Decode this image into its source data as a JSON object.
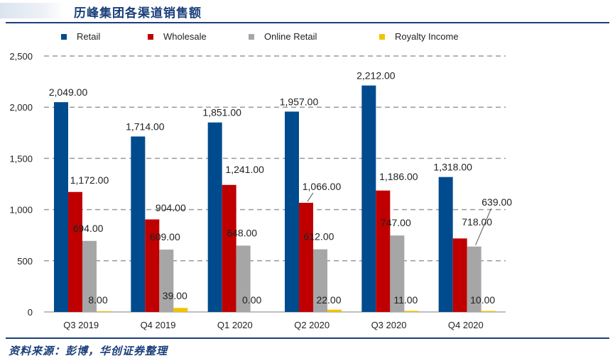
{
  "header": {
    "title": "历峰集团各渠道销售额"
  },
  "footer": {
    "source": "资料来源：彭博，华创证券整理"
  },
  "colors": {
    "accent": "#1b3f7a",
    "grid": "#9a9a9a"
  },
  "chart_data": {
    "type": "bar",
    "title": "历峰集团各渠道销售额",
    "xlabel": "",
    "ylabel": "",
    "ylim": [
      0,
      2500
    ],
    "yticks": [
      0,
      500,
      1000,
      1500,
      2000,
      2500
    ],
    "ytick_labels": [
      "0",
      "500",
      "1,000",
      "1,500",
      "2,000",
      "2,500"
    ],
    "grid": "horizontal dashed",
    "legend_position": "top",
    "categories": [
      "Q3 2019",
      "Q4 2019",
      "Q1 2020",
      "Q2 2020",
      "Q3 2020",
      "Q4 2020"
    ],
    "series": [
      {
        "name": "Retail",
        "color": "#004b8d",
        "values": [
          2049,
          1714,
          1851,
          1957,
          2212,
          1318
        ],
        "labels": [
          "2,049.00",
          "1,714.00",
          "1,851.00",
          "1,957.00",
          "2,212.00",
          "1,318.00"
        ]
      },
      {
        "name": "Wholesale",
        "color": "#c00000",
        "values": [
          1172,
          904,
          1241,
          1066,
          1186,
          718
        ],
        "labels": [
          "1,172.00",
          "904.00",
          "1,241.00",
          "1,066.00",
          "1,186.00",
          "718.00"
        ]
      },
      {
        "name": "Online Retail",
        "color": "#a6a6a6",
        "values": [
          694,
          609,
          648,
          612,
          747,
          639
        ],
        "labels": [
          "694.00",
          "609.00",
          "648.00",
          "612.00",
          "747.00",
          "639.00"
        ]
      },
      {
        "name": "Royalty Income",
        "color": "#f2c200",
        "values": [
          8,
          39,
          0,
          22,
          11,
          10
        ],
        "labels": [
          "8.00",
          "39.00",
          "0.00",
          "22.00",
          "11.00",
          "10.00"
        ]
      }
    ]
  }
}
